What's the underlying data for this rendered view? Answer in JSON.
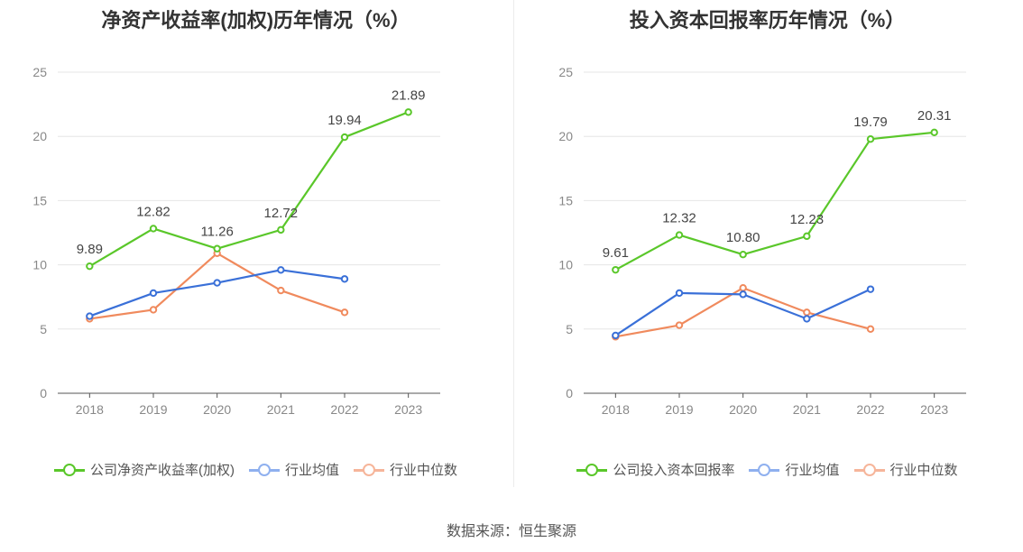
{
  "source_note": "数据来源：恒生聚源",
  "colors": {
    "company": "#5ac72a",
    "industry_avg": "#3a70d8",
    "industry_median": "#f08a5d",
    "legend_avg": "#8fb0ef",
    "legend_median": "#f6b59a"
  },
  "chart_data": [
    {
      "type": "line",
      "title": "净资产收益率(加权)历年情况（%）",
      "categories": [
        "2018",
        "2019",
        "2020",
        "2021",
        "2022",
        "2023"
      ],
      "ylim": [
        0,
        25
      ],
      "yticks": [
        "0",
        "5",
        "10",
        "15",
        "20",
        "25"
      ],
      "grid": true,
      "legend_position": "bottom",
      "series": [
        {
          "name": "公司净资产收益率(加权)",
          "values": [
            9.89,
            12.82,
            11.26,
            12.72,
            19.94,
            21.89
          ],
          "labels": [
            "9.89",
            "12.82",
            "11.26",
            "12.72",
            "19.94",
            "21.89"
          ],
          "color_key": "company"
        },
        {
          "name": "行业均值",
          "values": [
            6.0,
            7.8,
            8.6,
            9.6,
            8.9,
            null
          ],
          "color_key": "industry_avg"
        },
        {
          "name": "行业中位数",
          "values": [
            5.8,
            6.5,
            10.9,
            8.0,
            6.3,
            null
          ],
          "color_key": "industry_median"
        }
      ]
    },
    {
      "type": "line",
      "title": "投入资本回报率历年情况（%）",
      "categories": [
        "2018",
        "2019",
        "2020",
        "2021",
        "2022",
        "2023"
      ],
      "ylim": [
        0,
        25
      ],
      "yticks": [
        "0",
        "5",
        "10",
        "15",
        "20",
        "25"
      ],
      "grid": true,
      "legend_position": "bottom",
      "series": [
        {
          "name": "公司投入资本回报率",
          "values": [
            9.61,
            12.32,
            10.8,
            12.23,
            19.79,
            20.31
          ],
          "labels": [
            "9.61",
            "12.32",
            "10.80",
            "12.23",
            "19.79",
            "20.31"
          ],
          "color_key": "company"
        },
        {
          "name": "行业均值",
          "values": [
            4.5,
            7.8,
            7.7,
            5.8,
            8.1,
            null
          ],
          "color_key": "industry_avg"
        },
        {
          "name": "行业中位数",
          "values": [
            4.4,
            5.3,
            8.2,
            6.3,
            5.0,
            null
          ],
          "color_key": "industry_median"
        }
      ]
    }
  ]
}
